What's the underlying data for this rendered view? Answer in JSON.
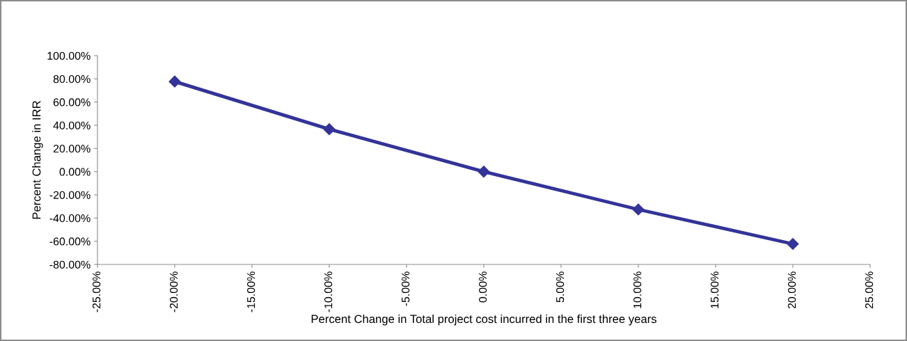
{
  "chart_data": {
    "type": "line",
    "xlabel": "Percent Change in Total project cost incurred in the first three years",
    "ylabel": "Percent Change in IRR",
    "x": [
      -20,
      -10,
      0,
      10,
      20
    ],
    "series": [
      {
        "color": "#333399",
        "values": [
          77.7,
          36.6,
          0,
          -32.6,
          -62.3
        ]
      }
    ],
    "xlim": [
      -25,
      25
    ],
    "xticks": [
      {
        "value": -25,
        "label": "-25.00%"
      },
      {
        "value": -20,
        "label": "-20.00%"
      },
      {
        "value": -15,
        "label": "-15.00%"
      },
      {
        "value": -10,
        "label": "-10.00%"
      },
      {
        "value": -5,
        "label": "-5.00%"
      },
      {
        "value": 0,
        "label": "0.00%"
      },
      {
        "value": 5,
        "label": "5.00%"
      },
      {
        "value": 10,
        "label": "10.00%"
      },
      {
        "value": 15,
        "label": "15.00%"
      },
      {
        "value": 20,
        "label": "20.00%"
      },
      {
        "value": 25,
        "label": "25.00%"
      }
    ],
    "ylim": [
      -80,
      100
    ],
    "yticks": [
      {
        "value": -80,
        "label": "-80.00%"
      },
      {
        "value": -60,
        "label": "-60.00%"
      },
      {
        "value": -40,
        "label": "-40.00%"
      },
      {
        "value": -20,
        "label": "-20.00%"
      },
      {
        "value": 0,
        "label": "0.00%"
      },
      {
        "value": 20,
        "label": "20.00%"
      },
      {
        "value": 40,
        "label": "40.00%"
      },
      {
        "value": 60,
        "label": "60.00%"
      },
      {
        "value": 80,
        "label": "80.00%"
      },
      {
        "value": 100,
        "label": "100.00%"
      }
    ],
    "marker": "diamond",
    "line_style": "solid",
    "grid": false
  }
}
